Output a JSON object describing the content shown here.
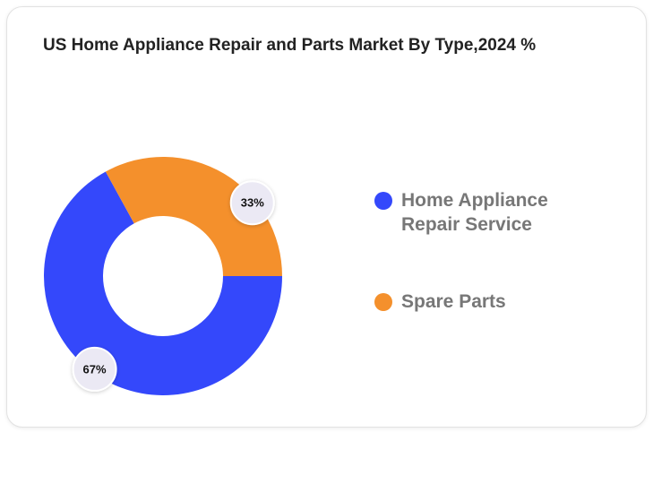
{
  "chart_data": {
    "type": "donut",
    "title": "US Home Appliance Repair and Parts Market By Type,2024 %",
    "series": [
      {
        "name": "Home Appliance Repair Service",
        "color": "#3448fb",
        "values": [
          67
        ],
        "value_labels": [
          "67%"
        ]
      },
      {
        "name": "Spare Parts",
        "color": "#f4902c",
        "values": [
          33
        ],
        "value_labels": [
          "33%"
        ]
      }
    ],
    "legend": "right"
  }
}
